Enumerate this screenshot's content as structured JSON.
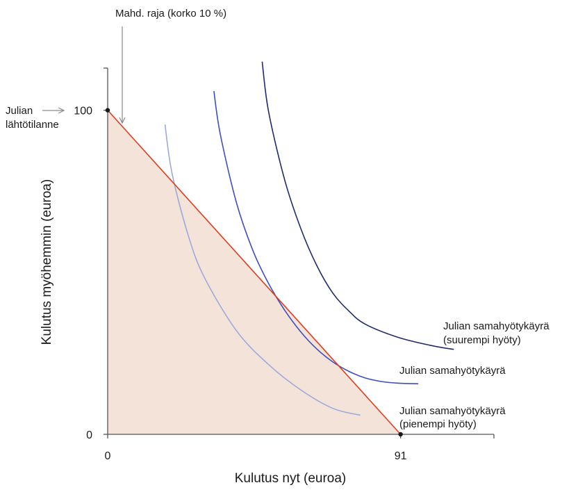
{
  "chart_data": {
    "type": "line",
    "title": "",
    "xlabel": "Kulutus nyt (euroa)",
    "ylabel": "Kulutus myöhemmin (euroa)",
    "xlim": [
      0,
      120
    ],
    "ylim": [
      0,
      113
    ],
    "x_ticks": [
      {
        "value": 0,
        "label": "0"
      },
      {
        "value": 91,
        "label": "91"
      }
    ],
    "y_ticks": [
      {
        "value": 0,
        "label": "0"
      },
      {
        "value": 100,
        "label": "100"
      }
    ],
    "budget_constraint": {
      "name": "Mahd. raja (korko 10 %)",
      "color": "#e03c1e",
      "fill_color": "#f3e3d8",
      "x": [
        0,
        91
      ],
      "y": [
        100,
        0
      ]
    },
    "endowment_point": {
      "label_line1": "Julian",
      "label_line2": "lähtötilanne",
      "x": 0,
      "y": 100
    },
    "series": [
      {
        "name": "Julian samahyötykäyrä (pienempi hyöty)",
        "label_line1": "Julian samahyötykäyrä",
        "label_line2": "(pienempi hyöty)",
        "color": "#9fa8dc",
        "x": [
          17.8,
          20,
          25,
          30,
          40,
          50,
          60,
          70,
          78.5
        ],
        "y": [
          95.6,
          80.5,
          61.5,
          48.5,
          32.0,
          21.5,
          13.7,
          8.0,
          5.9
        ]
      },
      {
        "name": "Julian samahyötykäyrä",
        "label_line1": "Julian samahyötykäyrä",
        "label_line2": "",
        "color": "#3c4ec0",
        "x": [
          33.0,
          35,
          40,
          45,
          50,
          55,
          60,
          65,
          70,
          75,
          80,
          84.3,
          90,
          96.5
        ],
        "y": [
          105.9,
          92.5,
          71.5,
          56.5,
          45.5,
          37.5,
          31.0,
          25.3,
          20.4,
          16.0,
          15.0,
          14.2,
          16.5,
          15.8
        ]
      },
      {
        "name": "Julian samahyötykäyrä (suurempi hyöty)",
        "label_line1": "Julian samahyötykäyrä",
        "label_line2": "(suurempi hyöty)",
        "color": "#1e2a6e",
        "x": [
          48.0,
          50,
          55,
          60,
          65,
          70,
          75,
          80,
          90,
          100,
          107.5
        ],
        "y": [
          115.0,
          99.5,
          78.5,
          63.5,
          52.0,
          43.5,
          38.0,
          34.0,
          30.0,
          27.5,
          26.2
        ]
      }
    ]
  }
}
